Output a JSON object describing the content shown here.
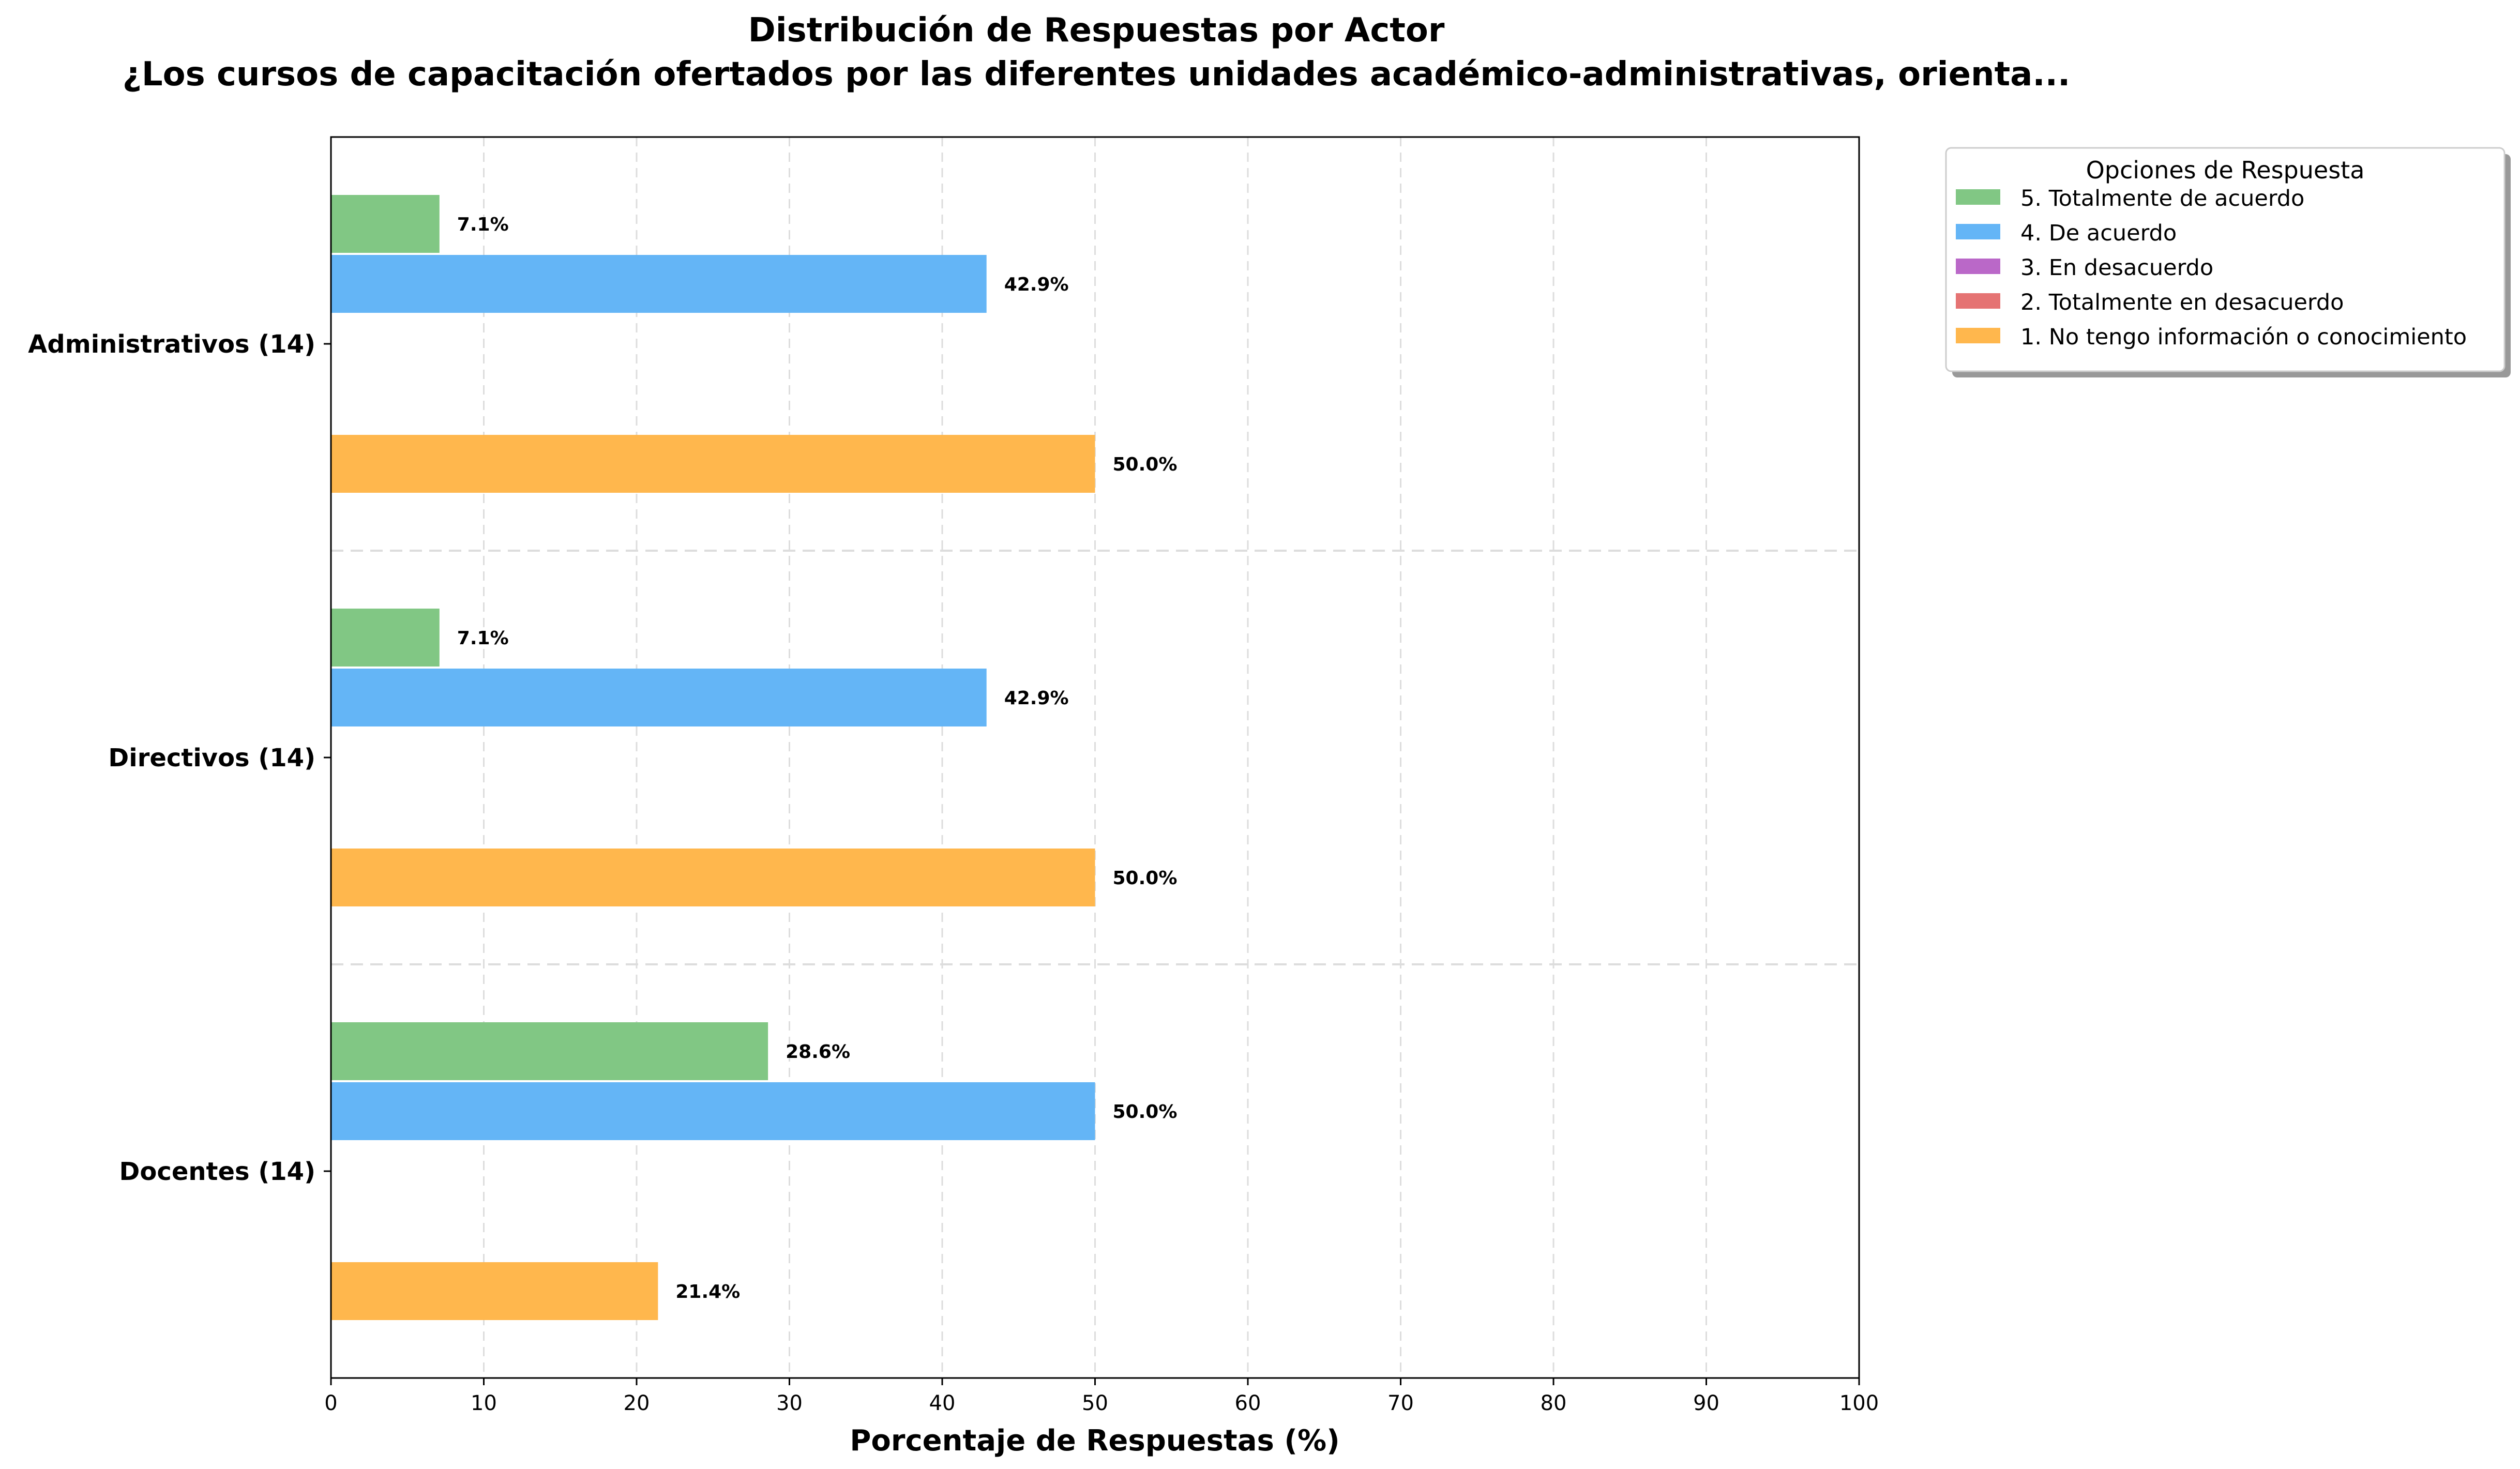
{
  "chart_data": {
    "type": "bar",
    "orientation": "horizontal",
    "title": "Distribución de Respuestas por Actor",
    "subtitle": "¿Los cursos de capacitación ofertados por las diferentes unidades académico-administrativas, orienta...",
    "xlabel": "Porcentaje de Respuestas (%)",
    "ylabel": "",
    "xlim": [
      0,
      100
    ],
    "xticks": [
      "0",
      "10",
      "20",
      "30",
      "40",
      "50",
      "60",
      "70",
      "80",
      "90",
      "100"
    ],
    "grid": true,
    "legend_title": "Opciones de Respuesta",
    "legend_placement": "outside-top-right",
    "categories": [
      "Administrativos (14)",
      "Directivos (14)",
      "Docentes (14)"
    ],
    "series": [
      {
        "name": "5. Totalmente de acuerdo",
        "color": "#81c784",
        "values": [
          7.1,
          7.1,
          28.6
        ],
        "labels": [
          "7.1%",
          "7.1%",
          "28.6%"
        ]
      },
      {
        "name": "4. De acuerdo",
        "color": "#64b5f6",
        "values": [
          42.9,
          42.9,
          50.0
        ],
        "labels": [
          "42.9%",
          "42.9%",
          "50.0%"
        ]
      },
      {
        "name": "3. En desacuerdo",
        "color": "#ba68c8",
        "values": [
          0,
          0,
          0
        ],
        "labels": [
          "",
          "",
          ""
        ]
      },
      {
        "name": "2. Totalmente en desacuerdo",
        "color": "#e57373",
        "values": [
          0,
          0,
          0
        ],
        "labels": [
          "",
          "",
          ""
        ]
      },
      {
        "name": "1. No tengo información o conocimiento",
        "color": "#ffb74d",
        "values": [
          50.0,
          50.0,
          21.4
        ],
        "labels": [
          "50.0%",
          "50.0%",
          "21.4%"
        ]
      }
    ]
  }
}
